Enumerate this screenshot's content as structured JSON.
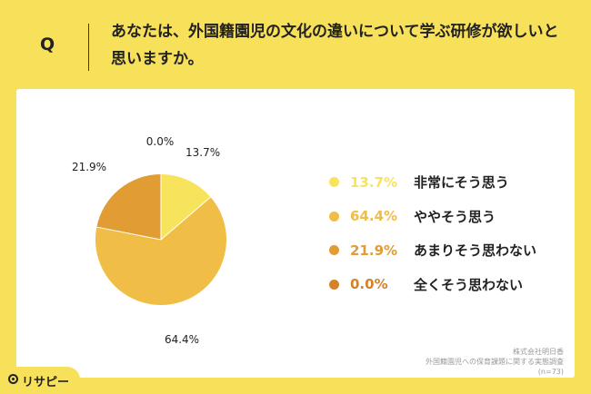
{
  "question": {
    "mark": "Q",
    "text": "あなたは、外国籍園児の文化の違いについて学ぶ研修が欲しいと思いますか。"
  },
  "chart_data": {
    "type": "pie",
    "slices": [
      {
        "label": "非常にそう思う",
        "value": 13.7,
        "value_label": "13.7%",
        "color": "#f8e45c"
      },
      {
        "label": "ややそう思う",
        "value": 64.4,
        "value_label": "64.4%",
        "color": "#f0bd46"
      },
      {
        "label": "あまりそう思わない",
        "value": 21.9,
        "value_label": "21.9%",
        "color": "#e19d33"
      },
      {
        "label": "全くそう思わない",
        "value": 0.0,
        "value_label": "0.0%",
        "color": "#d4822a"
      }
    ],
    "legend_position": "right"
  },
  "footnote": {
    "company": "株式会社明日香",
    "survey": "外国籍園児への保育課題に関する実態調査",
    "sample": "(n=73)"
  },
  "brand": {
    "name": "リサピー"
  }
}
